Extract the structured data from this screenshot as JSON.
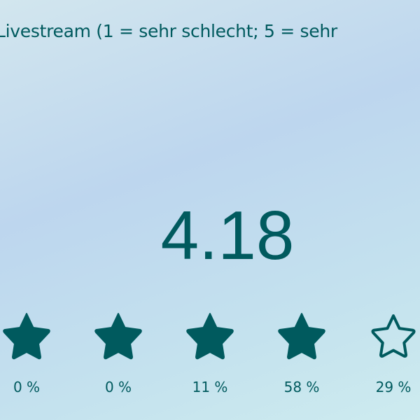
{
  "question": "Livestream (1 = sehr schlecht; 5 = sehr",
  "average": "4.18",
  "rating_value": 4.18,
  "colors": {
    "accent": "#005a5e"
  },
  "stars": [
    {
      "icon": "star-filled-icon",
      "filled": true,
      "percent": "0 %"
    },
    {
      "icon": "star-filled-icon",
      "filled": true,
      "percent": "0 %"
    },
    {
      "icon": "star-filled-icon",
      "filled": true,
      "percent": "11 %"
    },
    {
      "icon": "star-filled-icon",
      "filled": true,
      "percent": "58 %"
    },
    {
      "icon": "star-outline-icon",
      "filled": false,
      "percent": "29 %"
    }
  ]
}
